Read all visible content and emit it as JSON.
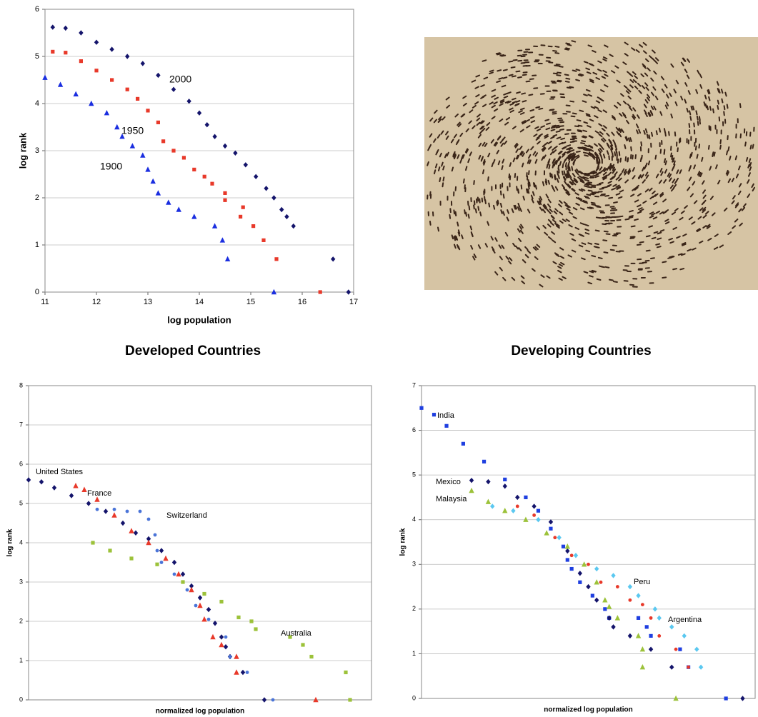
{
  "chart_data": [
    {
      "type": "scatter",
      "x_label": "log population",
      "y_label": "log rank",
      "xlim": [
        11,
        17
      ],
      "ylim": [
        0,
        6
      ],
      "xticks": [
        11,
        12,
        13,
        14,
        15,
        16,
        17
      ],
      "yticks": [
        0,
        1,
        2,
        3,
        4,
        5,
        6
      ],
      "grid": true,
      "series": [
        {
          "name": "2000",
          "color": "#14146b",
          "marker": "diamond",
          "x": [
            11.15,
            11.4,
            11.7,
            12,
            12.3,
            12.6,
            12.9,
            13.2,
            13.5,
            13.8,
            14.0,
            14.15,
            14.3,
            14.5,
            14.7,
            14.9,
            15.1,
            15.3,
            15.45,
            15.6,
            15.7,
            15.83,
            16.6,
            16.9
          ],
          "values": [
            5.62,
            5.6,
            5.5,
            5.3,
            5.15,
            5.0,
            4.85,
            4.6,
            4.3,
            4.05,
            3.8,
            3.55,
            3.3,
            3.1,
            2.95,
            2.7,
            2.45,
            2.2,
            2.0,
            1.75,
            1.6,
            1.4,
            0.7,
            0
          ]
        },
        {
          "name": "1950",
          "color": "#e8392a",
          "marker": "square",
          "x": [
            11.15,
            11.4,
            11.7,
            12,
            12.3,
            12.6,
            12.8,
            13.0,
            13.2,
            13.3,
            13.5,
            13.7,
            13.9,
            14.1,
            14.25,
            14.5,
            14.5,
            14.8,
            14.85,
            15.05,
            15.25,
            15.5,
            16.35
          ],
          "values": [
            5.1,
            5.08,
            4.9,
            4.7,
            4.5,
            4.3,
            4.1,
            3.85,
            3.6,
            3.2,
            3.0,
            2.85,
            2.6,
            2.45,
            2.3,
            2.1,
            1.95,
            1.6,
            1.8,
            1.4,
            1.1,
            0.7,
            0
          ]
        },
        {
          "name": "1900",
          "color": "#1a2ee0",
          "marker": "triangle",
          "x": [
            11.0,
            11.3,
            11.6,
            11.9,
            12.2,
            12.4,
            12.5,
            12.7,
            12.9,
            13.0,
            13.1,
            13.2,
            13.4,
            13.6,
            13.9,
            14.3,
            14.45,
            14.55,
            15.45
          ],
          "values": [
            4.55,
            4.4,
            4.2,
            4.0,
            3.8,
            3.5,
            3.3,
            3.1,
            2.9,
            2.6,
            2.35,
            2.1,
            1.9,
            1.75,
            1.6,
            1.4,
            1.1,
            0.7,
            0
          ]
        }
      ]
    },
    {
      "type": "scatter",
      "title": "Developed Countries",
      "x_label": "normalized log population",
      "y_label": "log rank",
      "xlim": [
        0,
        8
      ],
      "ylim": [
        0,
        8
      ],
      "yticks": [
        0,
        1,
        2,
        3,
        4,
        5,
        6,
        7,
        8
      ],
      "grid": true,
      "series": [
        {
          "name": "United States",
          "color": "#14146b",
          "marker": "diamond",
          "x": [
            0,
            0.3,
            0.6,
            1,
            1.4,
            1.8,
            2.2,
            2.5,
            2.8,
            3.1,
            3.4,
            3.6,
            3.8,
            4.0,
            4.2,
            4.35,
            4.5,
            4.6,
            4.7,
            5.0,
            5.5
          ],
          "values": [
            5.6,
            5.55,
            5.4,
            5.2,
            5.0,
            4.8,
            4.5,
            4.25,
            4.1,
            3.8,
            3.5,
            3.2,
            2.9,
            2.6,
            2.3,
            1.95,
            1.6,
            1.35,
            1.1,
            0.7,
            0
          ]
        },
        {
          "name": "France",
          "color": "#e8392a",
          "marker": "triangle",
          "x": [
            1.1,
            1.3,
            1.6,
            2.0,
            2.4,
            2.8,
            3.2,
            3.5,
            3.8,
            4.0,
            4.1,
            4.3,
            4.5,
            4.85,
            4.85,
            6.7
          ],
          "values": [
            5.45,
            5.35,
            5.1,
            4.7,
            4.3,
            4.0,
            3.6,
            3.2,
            2.8,
            2.4,
            2.05,
            1.6,
            1.4,
            1.1,
            0.7,
            0
          ]
        },
        {
          "name": "Switzerland",
          "color": "#4a74d8",
          "marker": "circle",
          "x": [
            1.6,
            2.0,
            2.3,
            2.6,
            2.8,
            2.95,
            3.0,
            3.1,
            3.4,
            3.7,
            3.9,
            4.2,
            4.6,
            4.7,
            5.1,
            5.7
          ],
          "values": [
            4.85,
            4.85,
            4.8,
            4.8,
            4.6,
            4.2,
            3.8,
            3.5,
            3.2,
            2.8,
            2.4,
            2.05,
            1.6,
            1.1,
            0.7,
            0
          ]
        },
        {
          "name": "Australia",
          "color": "#9cc23a",
          "marker": "square",
          "x": [
            1.5,
            1.9,
            2.4,
            3.0,
            3.6,
            4.1,
            4.5,
            4.9,
            5.2,
            5.3,
            6.1,
            6.4,
            6.6,
            7.4,
            7.5
          ],
          "values": [
            4.0,
            3.8,
            3.6,
            3.45,
            3.0,
            2.7,
            2.5,
            2.1,
            2.0,
            1.8,
            1.6,
            1.4,
            1.1,
            0.7,
            0
          ]
        }
      ]
    },
    {
      "type": "scatter",
      "title": "Developing Countries",
      "x_label": "normalized log population",
      "y_label": "log rank",
      "xlim": [
        0,
        8
      ],
      "ylim": [
        0,
        7
      ],
      "yticks": [
        0,
        1,
        2,
        3,
        4,
        5,
        6,
        7
      ],
      "grid": true,
      "series": [
        {
          "name": "India",
          "color": "#1f3fe0",
          "marker": "square",
          "x": [
            0,
            0.3,
            0.6,
            1.0,
            1.5,
            2,
            2.5,
            2.8,
            3.1,
            3.4,
            3.5,
            3.6,
            3.8,
            4.1,
            4.4,
            4.5,
            5.2,
            5.4,
            5.5,
            6.2,
            6.4,
            7.3
          ],
          "values": [
            6.5,
            6.35,
            6.1,
            5.7,
            5.3,
            4.9,
            4.5,
            4.2,
            3.8,
            3.4,
            3.1,
            2.9,
            2.6,
            2.3,
            2.0,
            1.8,
            1.8,
            1.6,
            1.4,
            1.1,
            0.7,
            0
          ]
        },
        {
          "name": "Mexico",
          "color": "#14146b",
          "marker": "diamond",
          "x": [
            1.2,
            1.6,
            2.0,
            2.3,
            2.7,
            3.1,
            3.5,
            3.8,
            4.0,
            4.2,
            4.5,
            4.6,
            5.0,
            5.5,
            6.0,
            7.7
          ],
          "values": [
            4.88,
            4.85,
            4.75,
            4.5,
            4.3,
            3.95,
            3.3,
            2.8,
            2.5,
            2.2,
            1.8,
            1.6,
            1.4,
            1.1,
            0.7,
            0
          ]
        },
        {
          "name": "Malaysia",
          "color": "#9cc23a",
          "marker": "triangle",
          "x": [
            1.2,
            1.6,
            2.0,
            2.5,
            3.0,
            3.5,
            3.9,
            4.2,
            4.4,
            4.5,
            4.7,
            5.2,
            5.3,
            5.3,
            6.1
          ],
          "values": [
            4.65,
            4.4,
            4.2,
            4.0,
            3.7,
            3.4,
            3.0,
            2.6,
            2.2,
            2.05,
            1.8,
            1.4,
            1.1,
            0.7,
            0
          ]
        },
        {
          "name": "Peru",
          "color": "#e8392a",
          "marker": "circle",
          "x": [
            2.3,
            2.7,
            3.2,
            3.6,
            4.0,
            4.3,
            4.7,
            5.0,
            5.3,
            5.5,
            5.7,
            6.1,
            6.4
          ],
          "values": [
            4.3,
            4.1,
            3.6,
            3.2,
            3.0,
            2.6,
            2.5,
            2.2,
            2.1,
            1.8,
            1.4,
            1.1,
            0.7
          ]
        },
        {
          "name": "Argentina",
          "color": "#5bc8f0",
          "marker": "diamond",
          "x": [
            1.7,
            2.2,
            2.8,
            3.3,
            3.7,
            4.2,
            4.6,
            5.0,
            5.2,
            5.6,
            5.7,
            6.0,
            6.3,
            6.6,
            6.7
          ],
          "values": [
            4.3,
            4.2,
            4.0,
            3.6,
            3.2,
            2.9,
            2.75,
            2.5,
            2.3,
            2.0,
            1.8,
            1.6,
            1.4,
            1.1,
            0.7
          ]
        }
      ]
    }
  ]
}
